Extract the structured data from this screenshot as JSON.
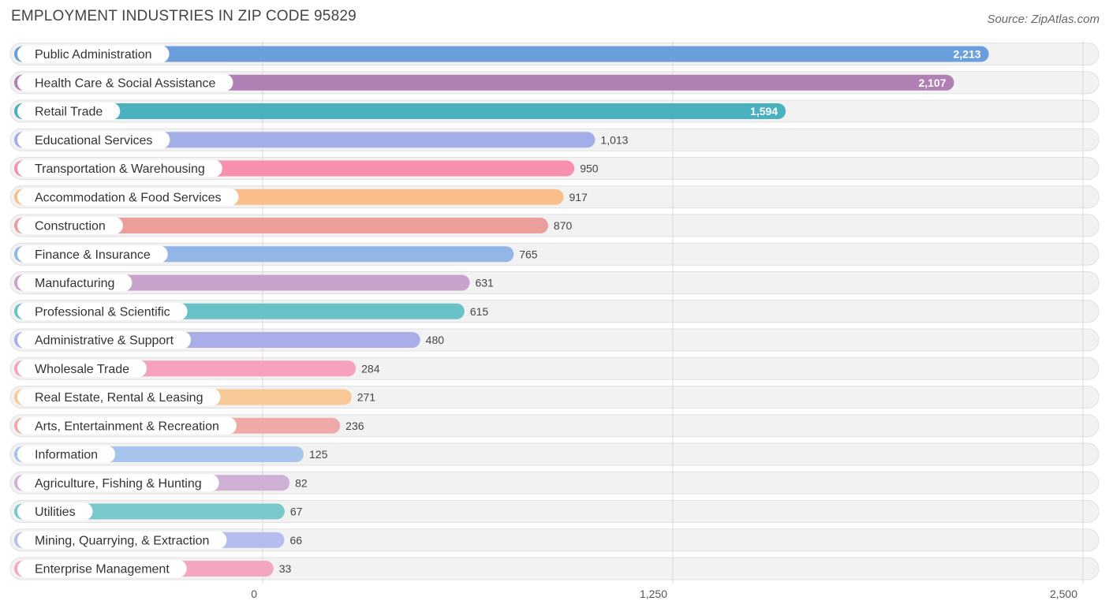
{
  "chart_data": {
    "type": "bar",
    "orientation": "horizontal",
    "title": "EMPLOYMENT INDUSTRIES IN ZIP CODE 95829",
    "source": "Source: ZipAtlas.com",
    "categories": [
      "Public Administration",
      "Health Care & Social Assistance",
      "Retail Trade",
      "Educational Services",
      "Transportation & Warehousing",
      "Accommodation & Food Services",
      "Construction",
      "Finance & Insurance",
      "Manufacturing",
      "Professional & Scientific",
      "Administrative & Support",
      "Wholesale Trade",
      "Real Estate, Rental & Leasing",
      "Arts, Entertainment & Recreation",
      "Information",
      "Agriculture, Fishing & Hunting",
      "Utilities",
      "Mining, Quarrying, & Extraction",
      "Enterprise Management"
    ],
    "values": [
      2213,
      2107,
      1594,
      1013,
      950,
      917,
      870,
      765,
      631,
      615,
      480,
      284,
      271,
      236,
      125,
      82,
      67,
      66,
      33
    ],
    "value_labels": [
      "2,213",
      "2,107",
      "1,594",
      "1,013",
      "950",
      "917",
      "870",
      "765",
      "631",
      "615",
      "480",
      "284",
      "271",
      "236",
      "125",
      "82",
      "67",
      "66",
      "33"
    ],
    "colors": [
      "#6b9fdc",
      "#b07fb4",
      "#4ab1be",
      "#a3aee8",
      "#f78fae",
      "#f9be89",
      "#eb9e9b",
      "#92b6e6",
      "#c7a2cb",
      "#69c2c8",
      "#a9aee9",
      "#f6a1bd",
      "#f9c897",
      "#eea9a8",
      "#a6c4ec",
      "#cdb0d4",
      "#79c9cc",
      "#b5bdee",
      "#f5a6bf"
    ],
    "xlim": [
      0,
      2500
    ],
    "xticks": [
      0,
      1250,
      2500
    ],
    "xtick_labels": [
      "0",
      "1,250",
      "2,500"
    ],
    "grid": true
  }
}
